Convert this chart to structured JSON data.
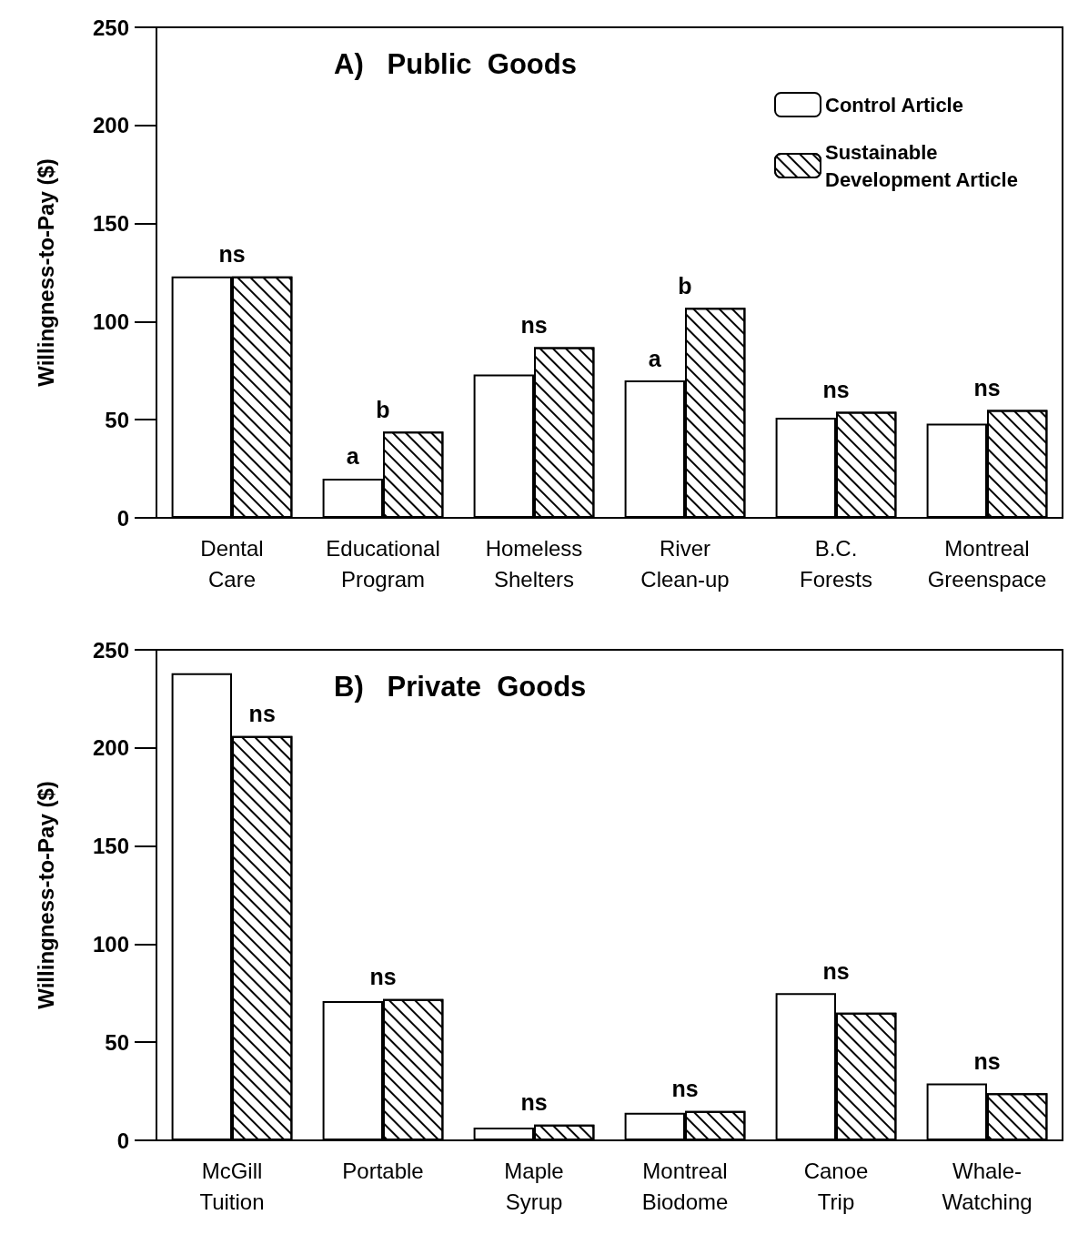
{
  "chart_data": [
    {
      "type": "bar",
      "title": "A)   Public  Goods",
      "ylabel": "Willingness-to-Pay ($)",
      "categories": [
        "Dental Care",
        "Educational Program",
        "Homeless Shelters",
        "River Clean-up",
        "B.C. Forests",
        "Montreal Greenspace"
      ],
      "series": [
        {
          "name": "Control Article",
          "color": "#ffffff",
          "values": [
            123,
            20,
            73,
            70,
            51,
            48
          ]
        },
        {
          "name": "Sustainable Development Article",
          "color": "#000000",
          "values": [
            123,
            44,
            87,
            107,
            54,
            55
          ]
        }
      ],
      "ylim": [
        0,
        250
      ],
      "yticks": [
        0,
        50,
        100,
        150,
        200,
        250
      ],
      "grid": false,
      "legend": "top right",
      "annotations": [
        {
          "text": "ns",
          "x": "Dental Care",
          "y": 123
        },
        {
          "text": "a",
          "x": "Educational Program",
          "y": 20
        },
        {
          "text": "b",
          "x": "Educational Program",
          "y": 44
        },
        {
          "text": "ns",
          "x": "Homeless Shelters",
          "y": 87
        },
        {
          "text": "a",
          "x": "River Clean-up",
          "y": 70
        },
        {
          "text": "b",
          "x": "River Clean-up",
          "y": 107
        },
        {
          "text": "ns",
          "x": "B.C. Forests",
          "y": 54
        },
        {
          "text": "ns",
          "x": "Montreal Greenspace",
          "y": 55
        }
      ]
    },
    {
      "type": "bar",
      "title": "B)   Private  Goods",
      "ylabel": "Willingness-to-Pay ($)",
      "categories": [
        "McGill Tuition",
        "Portable",
        "Maple Syrup",
        "Montreal Biodome",
        "Canoe Trip",
        "Whale-Watching"
      ],
      "series": [
        {
          "color": "#ffffff",
          "values": [
            238,
            71,
            6.5,
            14,
            75,
            29
          ]
        },
        {
          "color": "#000000",
          "values": [
            206,
            72,
            8,
            15,
            65,
            24
          ]
        }
      ],
      "ylim": [
        0,
        250
      ],
      "yticks": [
        0,
        50,
        100,
        150,
        200,
        250
      ],
      "grid": false,
      "annotations": [
        {
          "text": "ns",
          "x": "McGill Tuition",
          "y": 206
        },
        {
          "text": "ns",
          "x": "Portable",
          "y": 72
        },
        {
          "text": "ns",
          "x": "Maple Syrup",
          "y": 8
        },
        {
          "text": "ns",
          "x": "Montreal Biodome",
          "y": 15
        },
        {
          "text": "ns",
          "x": "Canoe Trip",
          "y": 75
        },
        {
          "text": "ns",
          "x": "Whale-Watching",
          "y": 29
        }
      ]
    }
  ]
}
